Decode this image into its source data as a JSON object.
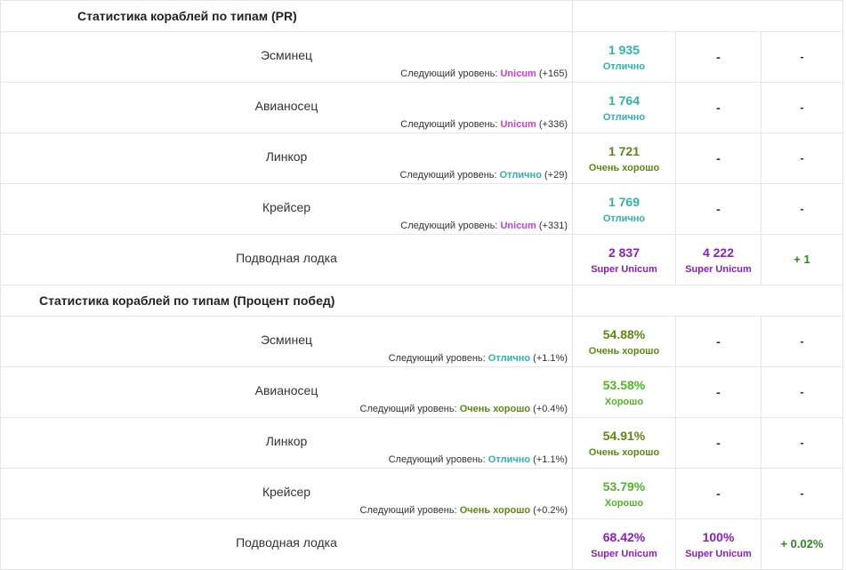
{
  "colors": {
    "unicum": "#cf3bd6",
    "super_unicum": "#8a1ec2",
    "otlichno": "#2bb5a8",
    "ochen_horosho": "#5c8a10",
    "horosho": "#4fb823",
    "diff_positive": "#2a8a1e"
  },
  "sections": [
    {
      "title": "Статистика кораблей по типам (PR)",
      "rows": [
        {
          "name": "Эсминец",
          "next_prefix": "Следующий уровень:",
          "next_level": "Unicum",
          "next_color": "#cf3bd6",
          "next_delta": "(+165)",
          "value": "1 935",
          "value_label": "Отлично",
          "value_color": "#2bb5a8",
          "value2": "-",
          "value2_label": "",
          "value2_color": "#333333",
          "diff": "-"
        },
        {
          "name": "Авианосец",
          "next_prefix": "Следующий уровень:",
          "next_level": "Unicum",
          "next_color": "#cf3bd6",
          "next_delta": "(+336)",
          "value": "1 764",
          "value_label": "Отлично",
          "value_color": "#2bb5a8",
          "value2": "-",
          "value2_label": "",
          "value2_color": "#333333",
          "diff": "-"
        },
        {
          "name": "Линкор",
          "next_prefix": "Следующий уровень:",
          "next_level": "Отлично",
          "next_color": "#2bb5a8",
          "next_delta": "(+29)",
          "value": "1 721",
          "value_label": "Очень хорошо",
          "value_color": "#5c8a10",
          "value2": "-",
          "value2_label": "",
          "value2_color": "#333333",
          "diff": "-"
        },
        {
          "name": "Крейсер",
          "next_prefix": "Следующий уровень:",
          "next_level": "Unicum",
          "next_color": "#cf3bd6",
          "next_delta": "(+331)",
          "value": "1 769",
          "value_label": "Отлично",
          "value_color": "#2bb5a8",
          "value2": "-",
          "value2_label": "",
          "value2_color": "#333333",
          "diff": "-"
        },
        {
          "name": "Подводная лодка",
          "next_prefix": "",
          "next_level": "",
          "next_color": "#333333",
          "next_delta": "",
          "value": "2 837",
          "value_label": "Super Unicum",
          "value_color": "#8a1ec2",
          "value2": "4 222",
          "value2_label": "Super Unicum",
          "value2_color": "#8a1ec2",
          "diff": "+ 1"
        }
      ]
    },
    {
      "title": "Статистика кораблей по типам (Процент побед)",
      "rows": [
        {
          "name": "Эсминец",
          "next_prefix": "Следующий уровень:",
          "next_level": "Отлично",
          "next_color": "#2bb5a8",
          "next_delta": "(+1.1%)",
          "value": "54.88%",
          "value_label": "Очень хорошо",
          "value_color": "#5c8a10",
          "value2": "-",
          "value2_label": "",
          "value2_color": "#333333",
          "diff": "-"
        },
        {
          "name": "Авианосец",
          "next_prefix": "Следующий уровень:",
          "next_level": "Очень хорошо",
          "next_color": "#5c8a10",
          "next_delta": "(+0.4%)",
          "value": "53.58%",
          "value_label": "Хорошо",
          "value_color": "#4fb823",
          "value2": "-",
          "value2_label": "",
          "value2_color": "#333333",
          "diff": "-"
        },
        {
          "name": "Линкор",
          "next_prefix": "Следующий уровень:",
          "next_level": "Отлично",
          "next_color": "#2bb5a8",
          "next_delta": "(+1.1%)",
          "value": "54.91%",
          "value_label": "Очень хорошо",
          "value_color": "#5c8a10",
          "value2": "-",
          "value2_label": "",
          "value2_color": "#333333",
          "diff": "-"
        },
        {
          "name": "Крейсер",
          "next_prefix": "Следующий уровень:",
          "next_level": "Очень хорошо",
          "next_color": "#5c8a10",
          "next_delta": "(+0.2%)",
          "value": "53.79%",
          "value_label": "Хорошо",
          "value_color": "#4fb823",
          "value2": "-",
          "value2_label": "",
          "value2_color": "#333333",
          "diff": "-"
        },
        {
          "name": "Подводная лодка",
          "next_prefix": "",
          "next_level": "",
          "next_color": "#333333",
          "next_delta": "",
          "value": "68.42%",
          "value_label": "Super Unicum",
          "value_color": "#8a1ec2",
          "value2": "100%",
          "value2_label": "Super Unicum",
          "value2_color": "#8a1ec2",
          "diff": "+ 0.02%"
        }
      ]
    }
  ]
}
